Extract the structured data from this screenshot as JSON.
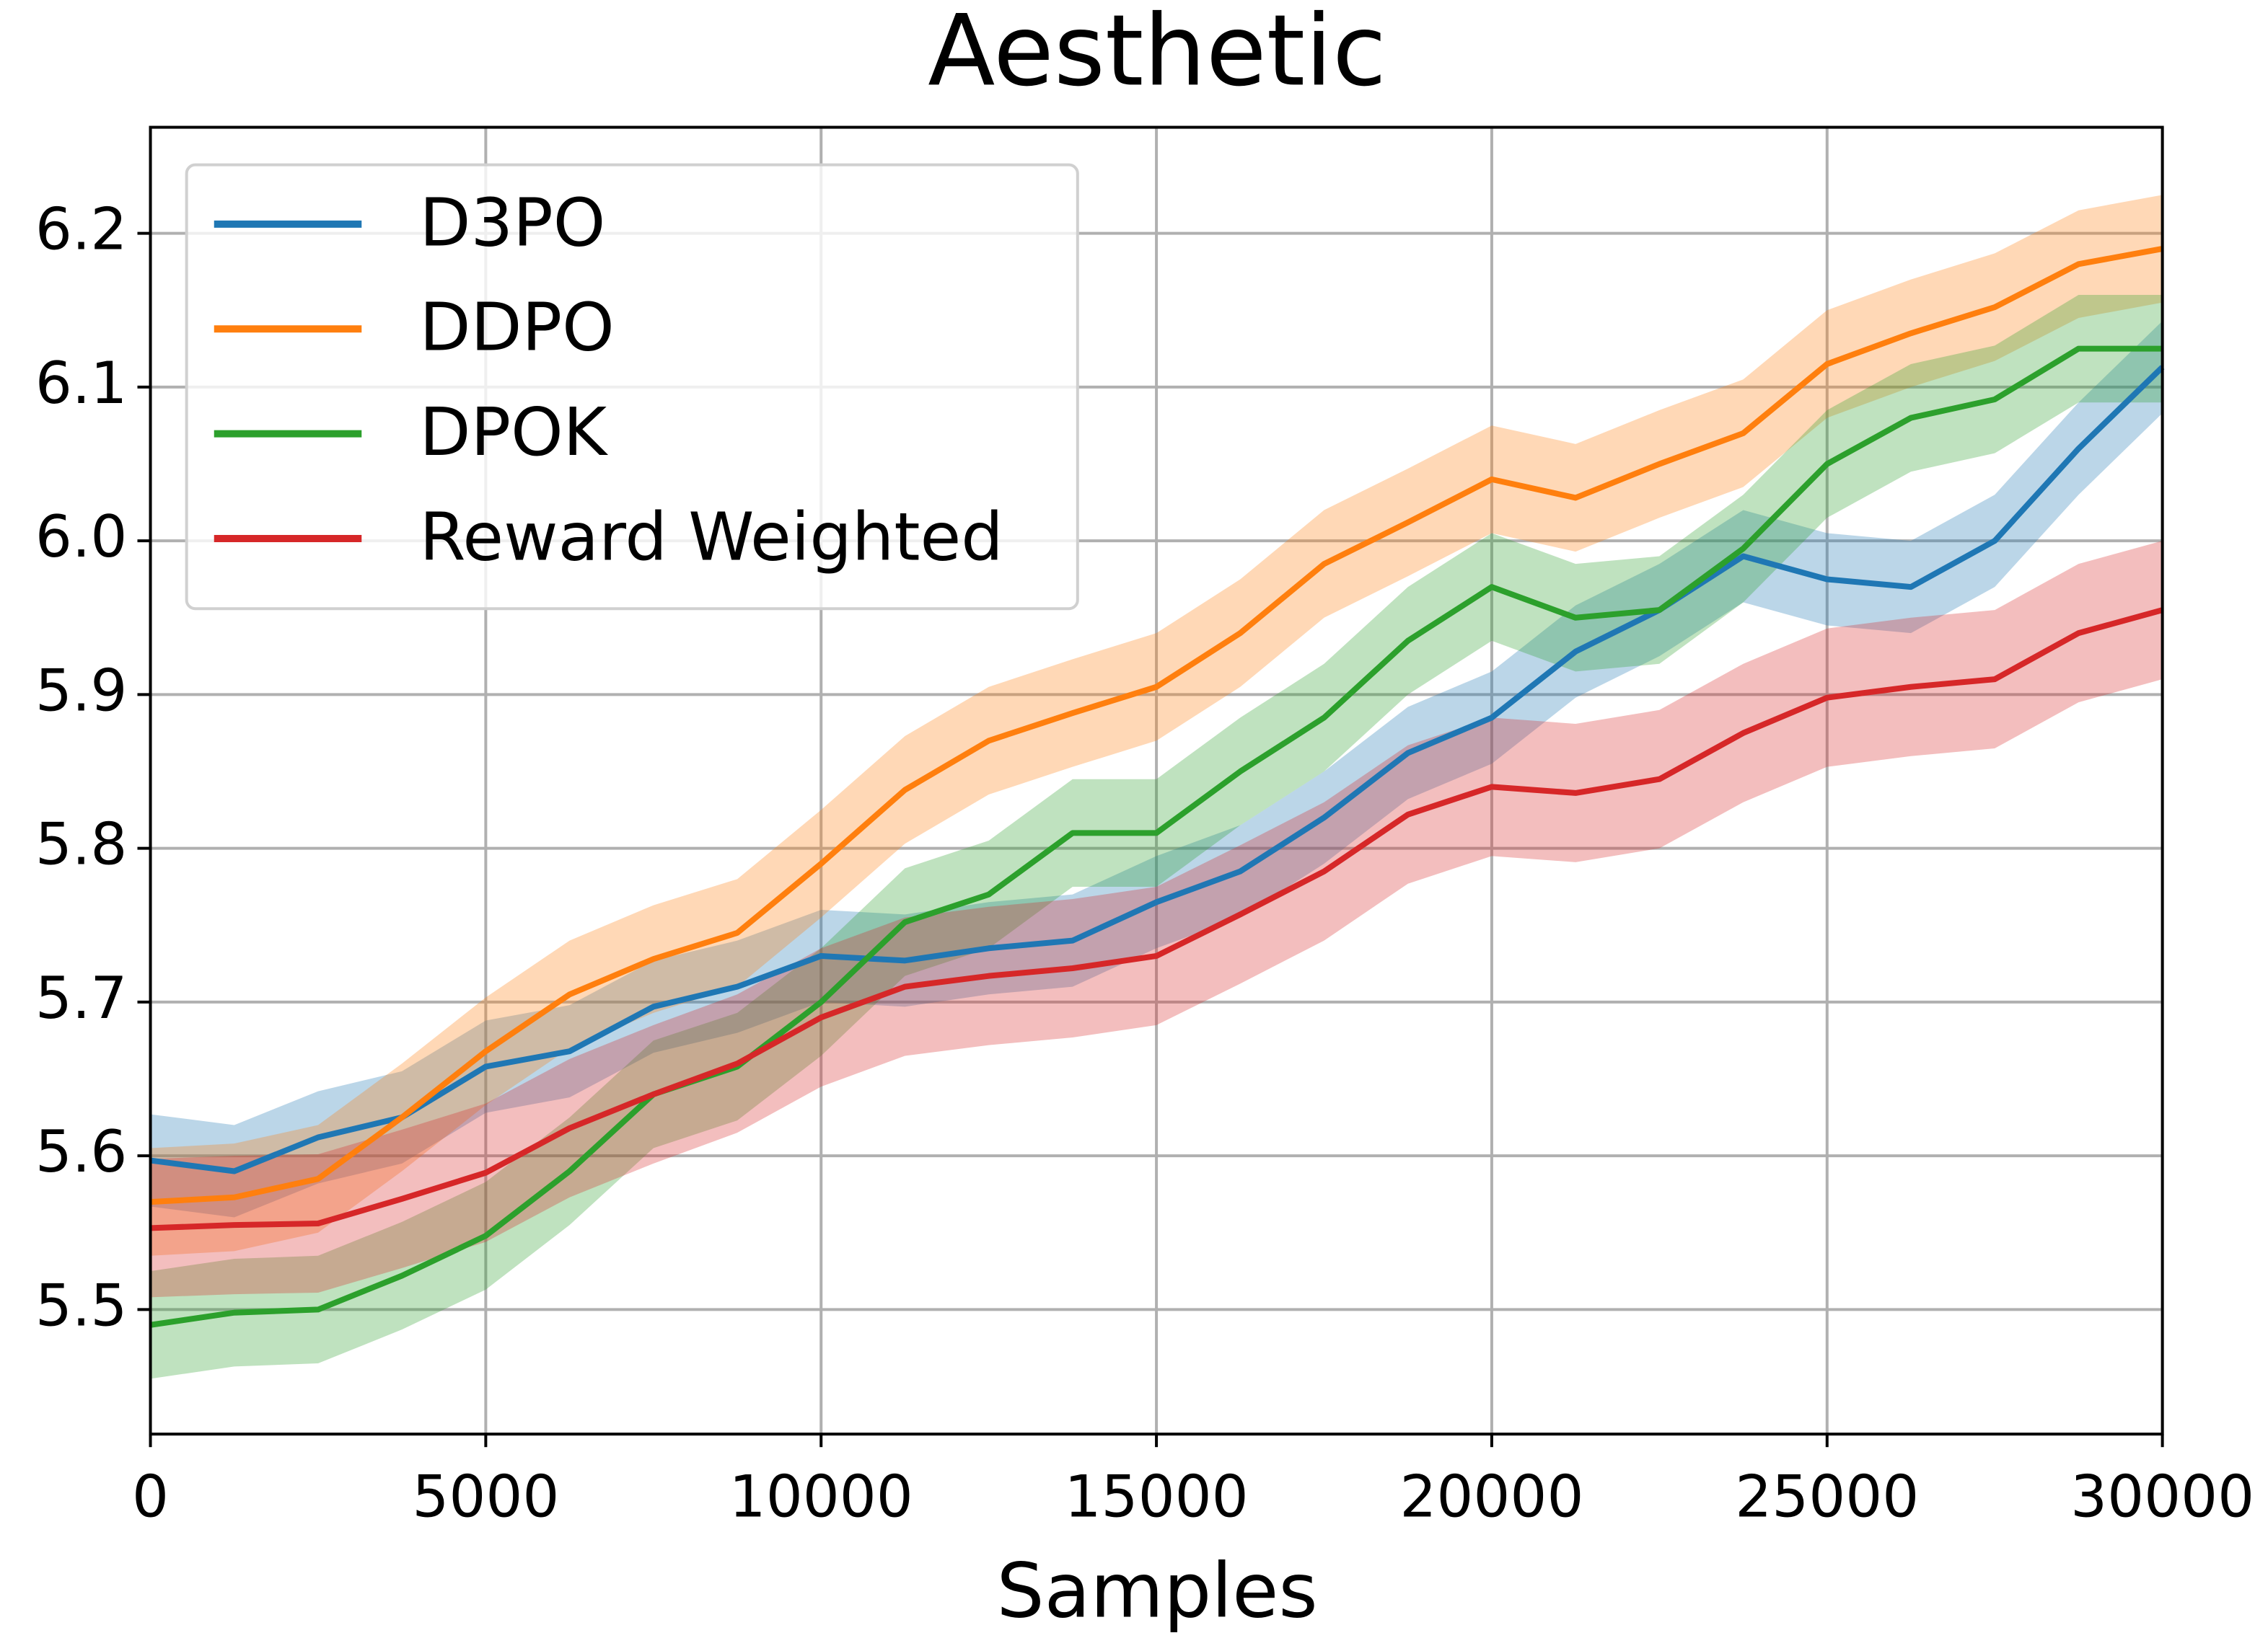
{
  "chart_data": {
    "type": "line",
    "title": "Aesthetic",
    "xlabel": "Samples",
    "x": [
      0,
      1250,
      2500,
      3750,
      5000,
      6250,
      7500,
      8750,
      10000,
      11250,
      12500,
      13750,
      15000,
      16250,
      17500,
      18750,
      20000,
      21250,
      22500,
      23750,
      25000,
      26250,
      27500,
      28750,
      30000
    ],
    "series": [
      {
        "name": "D3PO",
        "color": "#1f77b4",
        "error": 0.03,
        "values": [
          5.597,
          5.59,
          5.612,
          5.625,
          5.658,
          5.668,
          5.697,
          5.71,
          5.73,
          5.727,
          5.735,
          5.74,
          5.765,
          5.785,
          5.82,
          5.862,
          5.885,
          5.928,
          5.955,
          5.99,
          5.975,
          5.97,
          6.0,
          6.06,
          6.113
        ]
      },
      {
        "name": "DDPO",
        "color": "#ff7f0e",
        "error": 0.035,
        "values": [
          5.57,
          5.573,
          5.585,
          5.625,
          5.668,
          5.705,
          5.728,
          5.745,
          5.79,
          5.838,
          5.87,
          5.888,
          5.905,
          5.94,
          5.985,
          6.012,
          6.04,
          6.028,
          6.05,
          6.07,
          6.115,
          6.135,
          6.152,
          6.18,
          6.19
        ]
      },
      {
        "name": "DPOK",
        "color": "#2ca02c",
        "error": 0.035,
        "values": [
          5.49,
          5.498,
          5.5,
          5.522,
          5.548,
          5.59,
          5.64,
          5.658,
          5.7,
          5.752,
          5.77,
          5.81,
          5.81,
          5.85,
          5.885,
          5.935,
          5.97,
          5.95,
          5.955,
          5.995,
          6.05,
          6.08,
          6.092,
          6.125,
          6.125
        ]
      },
      {
        "name": "Reward Weighted",
        "color": "#d62728",
        "error": 0.045,
        "values": [
          5.553,
          5.555,
          5.556,
          5.572,
          5.589,
          5.618,
          5.64,
          5.66,
          5.69,
          5.71,
          5.717,
          5.722,
          5.73,
          5.757,
          5.785,
          5.822,
          5.84,
          5.836,
          5.845,
          5.875,
          5.898,
          5.905,
          5.91,
          5.94,
          5.955
        ]
      }
    ],
    "xlim": [
      0,
      30000
    ],
    "xticks": [
      0,
      5000,
      10000,
      15000,
      20000,
      25000,
      30000
    ],
    "ylim": [
      5.419,
      6.269
    ],
    "yticks": [
      5.5,
      5.6,
      5.7,
      5.8,
      5.9,
      {
        "value": 6,
        "label": "6.0"
      },
      6.1,
      6.2
    ],
    "grid": true,
    "legend": "upper left"
  }
}
